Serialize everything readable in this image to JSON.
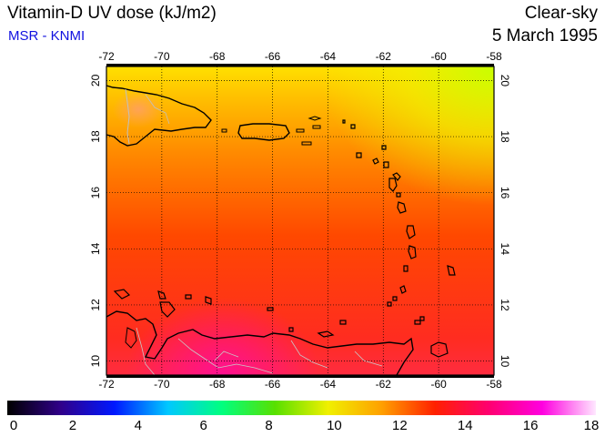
{
  "header": {
    "title": "Vitamin-D UV dose (kJ/m2)",
    "source": "MSR - KNMI",
    "condition": "Clear-sky",
    "date": "5 March 1995"
  },
  "map": {
    "lon_ticks": [
      "-72",
      "-70",
      "-68",
      "-66",
      "-64",
      "-62",
      "-60",
      "-58"
    ],
    "lat_ticks": [
      "10",
      "12",
      "14",
      "16",
      "18",
      "20"
    ],
    "lon_range": [
      -72,
      -58
    ],
    "lat_range": [
      9.5,
      20.5
    ],
    "grid": "dotted",
    "field_color_dominant": "#ff3c00",
    "coastline_color": "#000000",
    "border_color": "#c0c0c0"
  },
  "colorbar": {
    "labels": [
      "0",
      "2",
      "4",
      "6",
      "8",
      "10",
      "12",
      "14",
      "16",
      "18"
    ],
    "range": [
      0,
      18
    ],
    "stops": [
      "#000000",
      "#30008a",
      "#0018ff",
      "#00c8ff",
      "#00ff80",
      "#58e000",
      "#f0f000",
      "#ffa000",
      "#ff2000",
      "#ff0070",
      "#ff00e0",
      "#ffe8ff"
    ]
  }
}
